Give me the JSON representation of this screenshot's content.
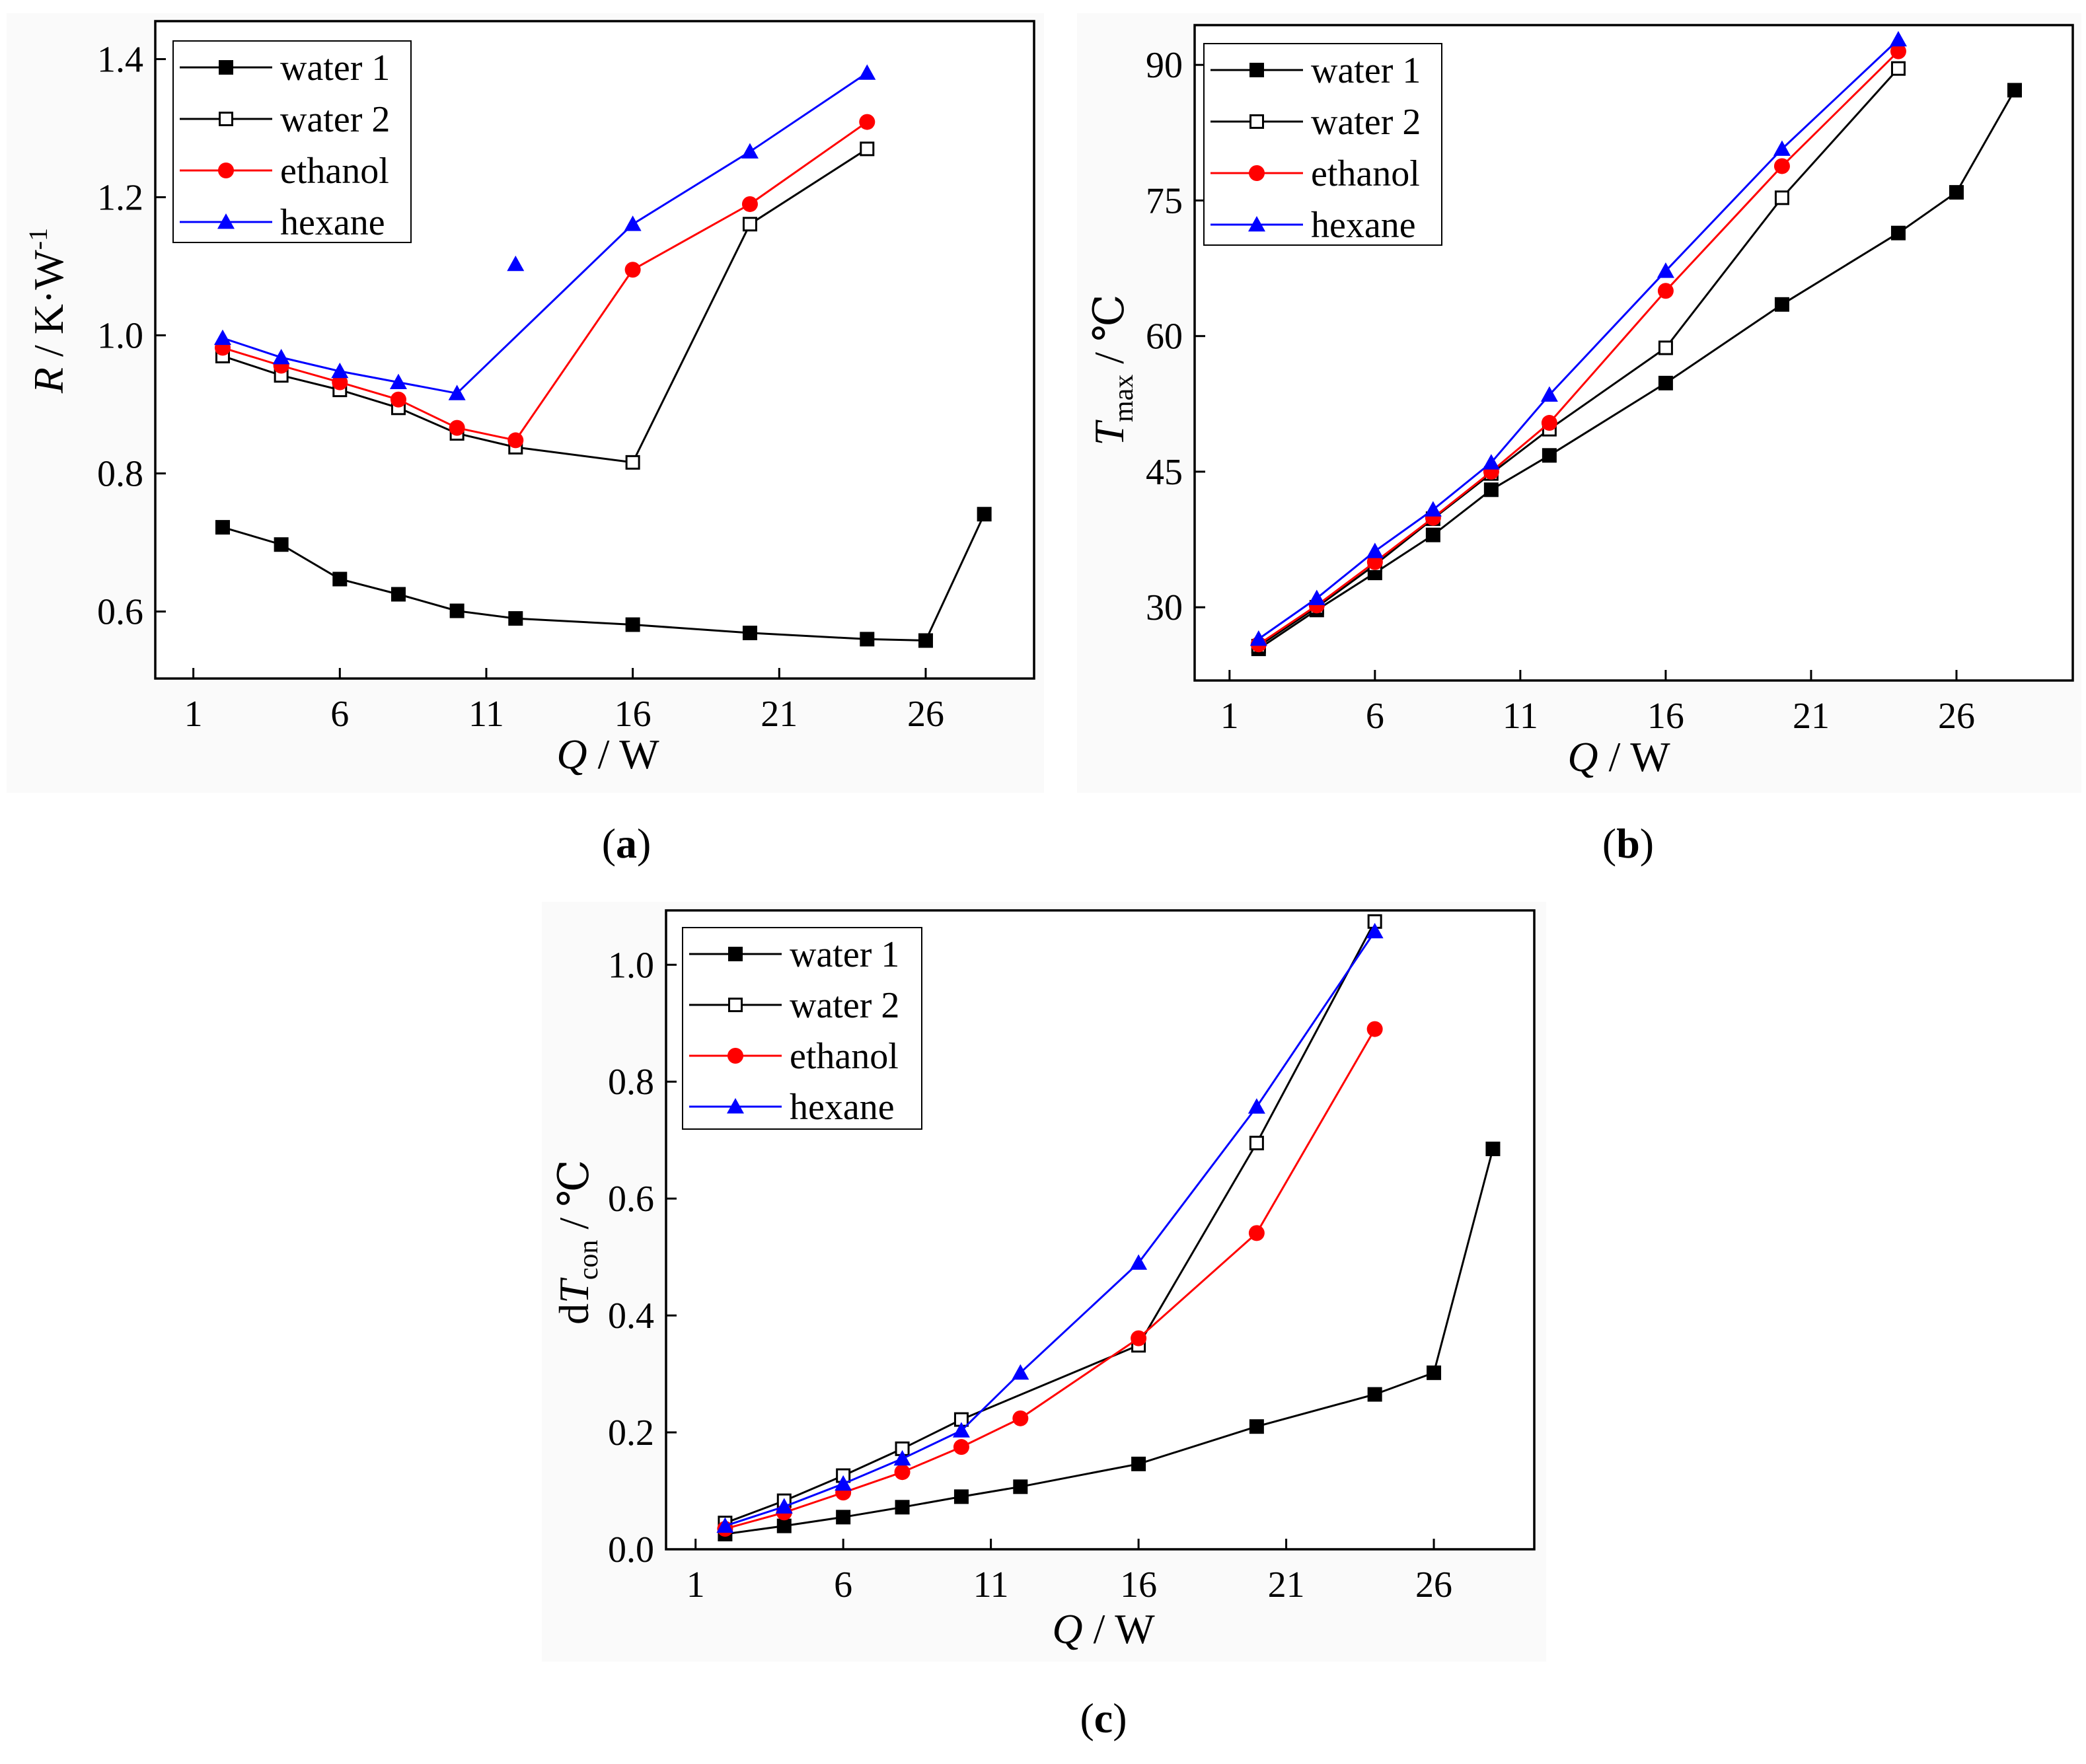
{
  "figure": {
    "panels": [
      {
        "id": "a",
        "label_open": "(",
        "label_letter": "a",
        "label_close": ")"
      },
      {
        "id": "b",
        "label_open": "(",
        "label_letter": "b",
        "label_close": ")"
      },
      {
        "id": "c",
        "label_open": "(",
        "label_letter": "c",
        "label_close": ")"
      }
    ]
  },
  "chart_data": [
    {
      "id": "a",
      "type": "line",
      "xlabel": {
        "symbol": "Q",
        "sep": " / ",
        "unit": "W"
      },
      "ylabel": {
        "symbol": "R",
        "sep": " / ",
        "unit": "K·W",
        "sup": "-1"
      },
      "xlim": [
        -0.3,
        29.7
      ],
      "ylim": [
        0.503,
        1.455
      ],
      "xticks": [
        1,
        6,
        11,
        16,
        21,
        26
      ],
      "yticks": [
        0.6,
        0.8,
        1.0,
        1.2,
        1.4
      ],
      "ytick_labels": [
        "0.6",
        "0.8",
        "1.0",
        "1.2",
        "1.4"
      ],
      "legend_position": "top-left",
      "series": [
        {
          "name": "water 1",
          "color": "#000000",
          "marker": "square-filled",
          "x": [
            2,
            4,
            6,
            8,
            10,
            12,
            16,
            20,
            24,
            26,
            28
          ],
          "y": [
            0.722,
            0.697,
            0.647,
            0.625,
            0.601,
            0.59,
            0.581,
            0.569,
            0.56,
            0.558,
            0.741
          ]
        },
        {
          "name": "water 2",
          "color": "#000000",
          "marker": "square-open",
          "x": [
            2,
            4,
            6,
            8,
            10,
            12,
            16,
            20,
            24
          ],
          "y": [
            0.97,
            0.942,
            0.921,
            0.895,
            0.858,
            0.838,
            0.816,
            1.161,
            1.27
          ]
        },
        {
          "name": "ethanol",
          "color": "#ff0000",
          "marker": "circle-filled",
          "x": [
            2,
            4,
            6,
            8,
            10,
            12,
            16,
            20,
            24
          ],
          "y": [
            0.982,
            0.956,
            0.932,
            0.907,
            0.866,
            0.848,
            1.095,
            1.19,
            1.309
          ]
        },
        {
          "name": "hexane",
          "color": "#0000ff",
          "marker": "triangle-filled",
          "x": [
            2,
            4,
            6,
            8,
            10,
            16,
            20,
            24
          ],
          "y": [
            0.996,
            0.968,
            0.948,
            0.932,
            0.916,
            1.161,
            1.266,
            1.38
          ],
          "extra_x": [
            12
          ],
          "extra_y": [
            1.103
          ]
        }
      ]
    },
    {
      "id": "b",
      "type": "line",
      "xlabel": {
        "symbol": "Q",
        "sep": " / ",
        "unit": "W"
      },
      "ylabel": {
        "symbol": "T",
        "sub": "max",
        "sep": " / ",
        "unit": "℃"
      },
      "xlim": [
        -0.2,
        30.0
      ],
      "ylim": [
        21.9,
        94.4
      ],
      "xticks": [
        1,
        6,
        11,
        16,
        21,
        26
      ],
      "yticks": [
        30,
        45,
        60,
        75,
        90
      ],
      "ytick_labels": [
        "30",
        "45",
        "60",
        "75",
        "90"
      ],
      "legend_position": "top-left",
      "series": [
        {
          "name": "water 1",
          "color": "#000000",
          "marker": "square-filled",
          "x": [
            2,
            4,
            6,
            8,
            10,
            12,
            16,
            20,
            24,
            26,
            28
          ],
          "y": [
            25.4,
            29.7,
            33.8,
            38.0,
            43.0,
            46.8,
            54.8,
            63.5,
            71.4,
            75.9,
            87.2
          ]
        },
        {
          "name": "water 2",
          "color": "#000000",
          "marker": "square-open",
          "x": [
            2,
            4,
            6,
            8,
            10,
            12,
            16,
            20,
            24
          ],
          "y": [
            25.7,
            30.0,
            34.7,
            39.8,
            44.8,
            49.7,
            58.7,
            75.3,
            89.6
          ]
        },
        {
          "name": "ethanol",
          "color": "#ff0000",
          "marker": "circle-filled",
          "x": [
            2,
            4,
            6,
            8,
            10,
            12,
            16,
            20,
            24
          ],
          "y": [
            25.9,
            30.2,
            35.0,
            39.9,
            45.0,
            50.4,
            65.0,
            78.8,
            91.5
          ]
        },
        {
          "name": "hexane",
          "color": "#0000ff",
          "marker": "triangle-filled",
          "x": [
            2,
            4,
            6,
            8,
            10,
            12,
            16,
            20,
            24
          ],
          "y": [
            26.5,
            31.0,
            36.2,
            40.8,
            46.0,
            53.5,
            67.2,
            80.7,
            92.8
          ]
        }
      ]
    },
    {
      "id": "c",
      "type": "line",
      "xlabel": {
        "symbol": "Q",
        "sep": " / ",
        "unit": "W"
      },
      "ylabel": {
        "prefix": "d",
        "symbol": "T",
        "sub": "con",
        "sep": " / ",
        "unit": "℃"
      },
      "xlim": [
        0.0,
        29.4
      ],
      "ylim": [
        0.0,
        1.093
      ],
      "xticks": [
        1,
        6,
        11,
        16,
        21,
        26
      ],
      "yticks": [
        0.0,
        0.2,
        0.4,
        0.6,
        0.8,
        1.0
      ],
      "ytick_labels": [
        "0.0",
        "0.2",
        "0.4",
        "0.6",
        "0.8",
        "1.0"
      ],
      "legend_position": "top-left",
      "series": [
        {
          "name": "water 1",
          "color": "#000000",
          "marker": "square-filled",
          "x": [
            2,
            4,
            6,
            8,
            10,
            12,
            16,
            20,
            24,
            26,
            28
          ],
          "y": [
            0.026,
            0.04,
            0.055,
            0.072,
            0.09,
            0.107,
            0.146,
            0.21,
            0.265,
            0.302,
            0.685
          ]
        },
        {
          "name": "water 2",
          "color": "#000000",
          "marker": "square-open",
          "x": [
            2,
            4,
            6,
            8,
            10,
            16,
            20,
            24
          ],
          "y": [
            0.045,
            0.083,
            0.126,
            0.172,
            0.222,
            0.349,
            0.695,
            1.074
          ]
        },
        {
          "name": "ethanol",
          "color": "#ff0000",
          "marker": "circle-filled",
          "x": [
            2,
            4,
            6,
            8,
            10,
            12,
            16,
            20,
            24
          ],
          "y": [
            0.035,
            0.063,
            0.097,
            0.132,
            0.175,
            0.224,
            0.361,
            0.541,
            0.89
          ]
        },
        {
          "name": "hexane",
          "color": "#0000ff",
          "marker": "triangle-filled",
          "x": [
            2,
            4,
            6,
            8,
            10,
            12,
            16,
            20,
            24
          ],
          "y": [
            0.04,
            0.073,
            0.112,
            0.155,
            0.203,
            0.302,
            0.49,
            0.757,
            1.057
          ]
        }
      ]
    }
  ]
}
